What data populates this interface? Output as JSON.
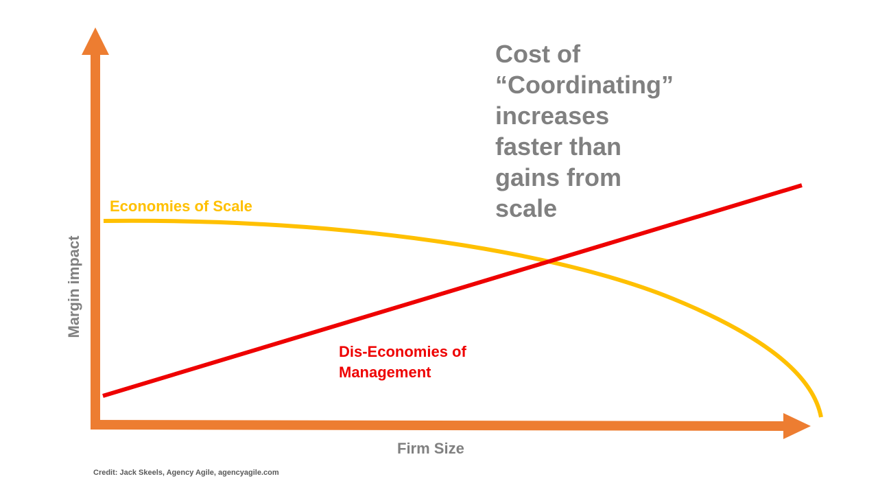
{
  "callout": {
    "lines": [
      "Cost of",
      "“Coordinating”",
      "increases",
      "faster than",
      "gains from",
      "scale"
    ],
    "color": "#808080"
  },
  "curves": {
    "economies_of_scale": {
      "label": "Economies of Scale",
      "color": "#FFC000"
    },
    "diseconomies_of_management": {
      "label_lines": [
        "Dis-Economies of",
        "Management"
      ],
      "color": "#EE0000"
    }
  },
  "axes": {
    "x_label": "Firm Size",
    "y_label": "Margin impact",
    "color": "#ED7D31"
  },
  "credit": "Credit: Jack Skeels, Agency Agile, agencyagile.com"
}
